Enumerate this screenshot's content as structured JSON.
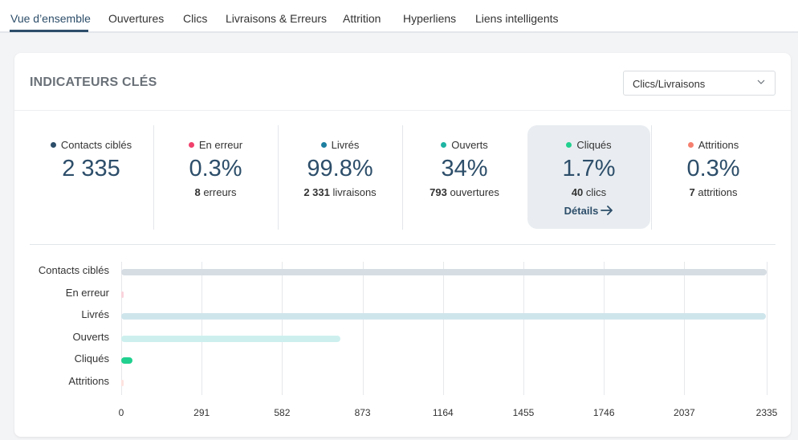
{
  "tabs": [
    {
      "label": "Vue d’ensemble",
      "active": true
    },
    {
      "label": "Ouvertures",
      "active": false
    },
    {
      "label": "Clics",
      "active": false
    },
    {
      "label": "Livraisons & Erreurs",
      "active": false
    },
    {
      "label": "Attrition",
      "active": false
    },
    {
      "label": "Hyperliens",
      "active": false
    },
    {
      "label": "Liens intelligents",
      "active": false
    }
  ],
  "card": {
    "title": "INDICATEURS CLÉS",
    "dropdown": {
      "value": "Clics/Livraisons",
      "icon": "chevron-down-icon"
    }
  },
  "kpis": [
    {
      "label": "Contacts ciblés",
      "color": "#2d4e6a",
      "value": "2 335",
      "sub_count": "",
      "sub_text": ""
    },
    {
      "label": "En erreur",
      "color": "#f0416c",
      "value": "0.3%",
      "sub_count": "8",
      "sub_text": "erreurs"
    },
    {
      "label": "Livrés",
      "color": "#1d7fa0",
      "value": "99.8%",
      "sub_count": "2 331",
      "sub_text": "livraisons"
    },
    {
      "label": "Ouverts",
      "color": "#1fb5a3",
      "value": "34%",
      "sub_count": "793",
      "sub_text": "ouvertures"
    },
    {
      "label": "Cliqués",
      "color": "#21d08f",
      "value": "1.7%",
      "sub_count": "40",
      "sub_text": "clics",
      "link": "Détails",
      "highlighted": true
    },
    {
      "label": "Attritions",
      "color": "#f57f6e",
      "value": "0.3%",
      "sub_count": "7",
      "sub_text": "attritions"
    }
  ],
  "chart_data": {
    "type": "bar",
    "orientation": "horizontal",
    "categories": [
      "Contacts ciblés",
      "En erreur",
      "Livrés",
      "Ouverts",
      "Cliqués",
      "Attritions"
    ],
    "values": [
      2335,
      8,
      2331,
      793,
      40,
      7
    ],
    "colors": [
      "#d6dde3",
      "#f9d3dc",
      "#cfe5ec",
      "#cdf0ee",
      "#21d08f",
      "#fde3df"
    ],
    "xticks": [
      0,
      291,
      582,
      873,
      1164,
      1455,
      1746,
      2037,
      2335
    ],
    "xlim": [
      0,
      2335
    ],
    "grid": true,
    "title": "",
    "xlabel": "",
    "ylabel": ""
  }
}
